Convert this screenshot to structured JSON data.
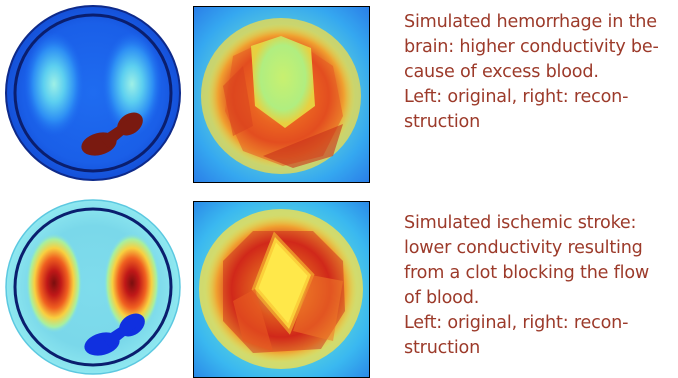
{
  "colors": {
    "caption_text": "#9c3a2a",
    "hemorrhage_blob": "#7a1a10",
    "stroke_blob": "#1030e0",
    "brain_ring": "#0a1e6e"
  },
  "panels": [
    {
      "id": "hemorrhage",
      "caption_main_lines": [
        "Simulated hemorrhage in the",
        "brain: higher conductivity be-",
        "cause of excess blood."
      ],
      "caption_note_lines": [
        "Left: original, right: recon-",
        "struction"
      ]
    },
    {
      "id": "stroke",
      "caption_main_lines": [
        "Simulated ischemic stroke:",
        "lower conductivity resulting",
        "from a clot blocking the flow",
        "of blood."
      ],
      "caption_note_lines": [
        "Left: original, right: recon-",
        "struction"
      ]
    }
  ]
}
